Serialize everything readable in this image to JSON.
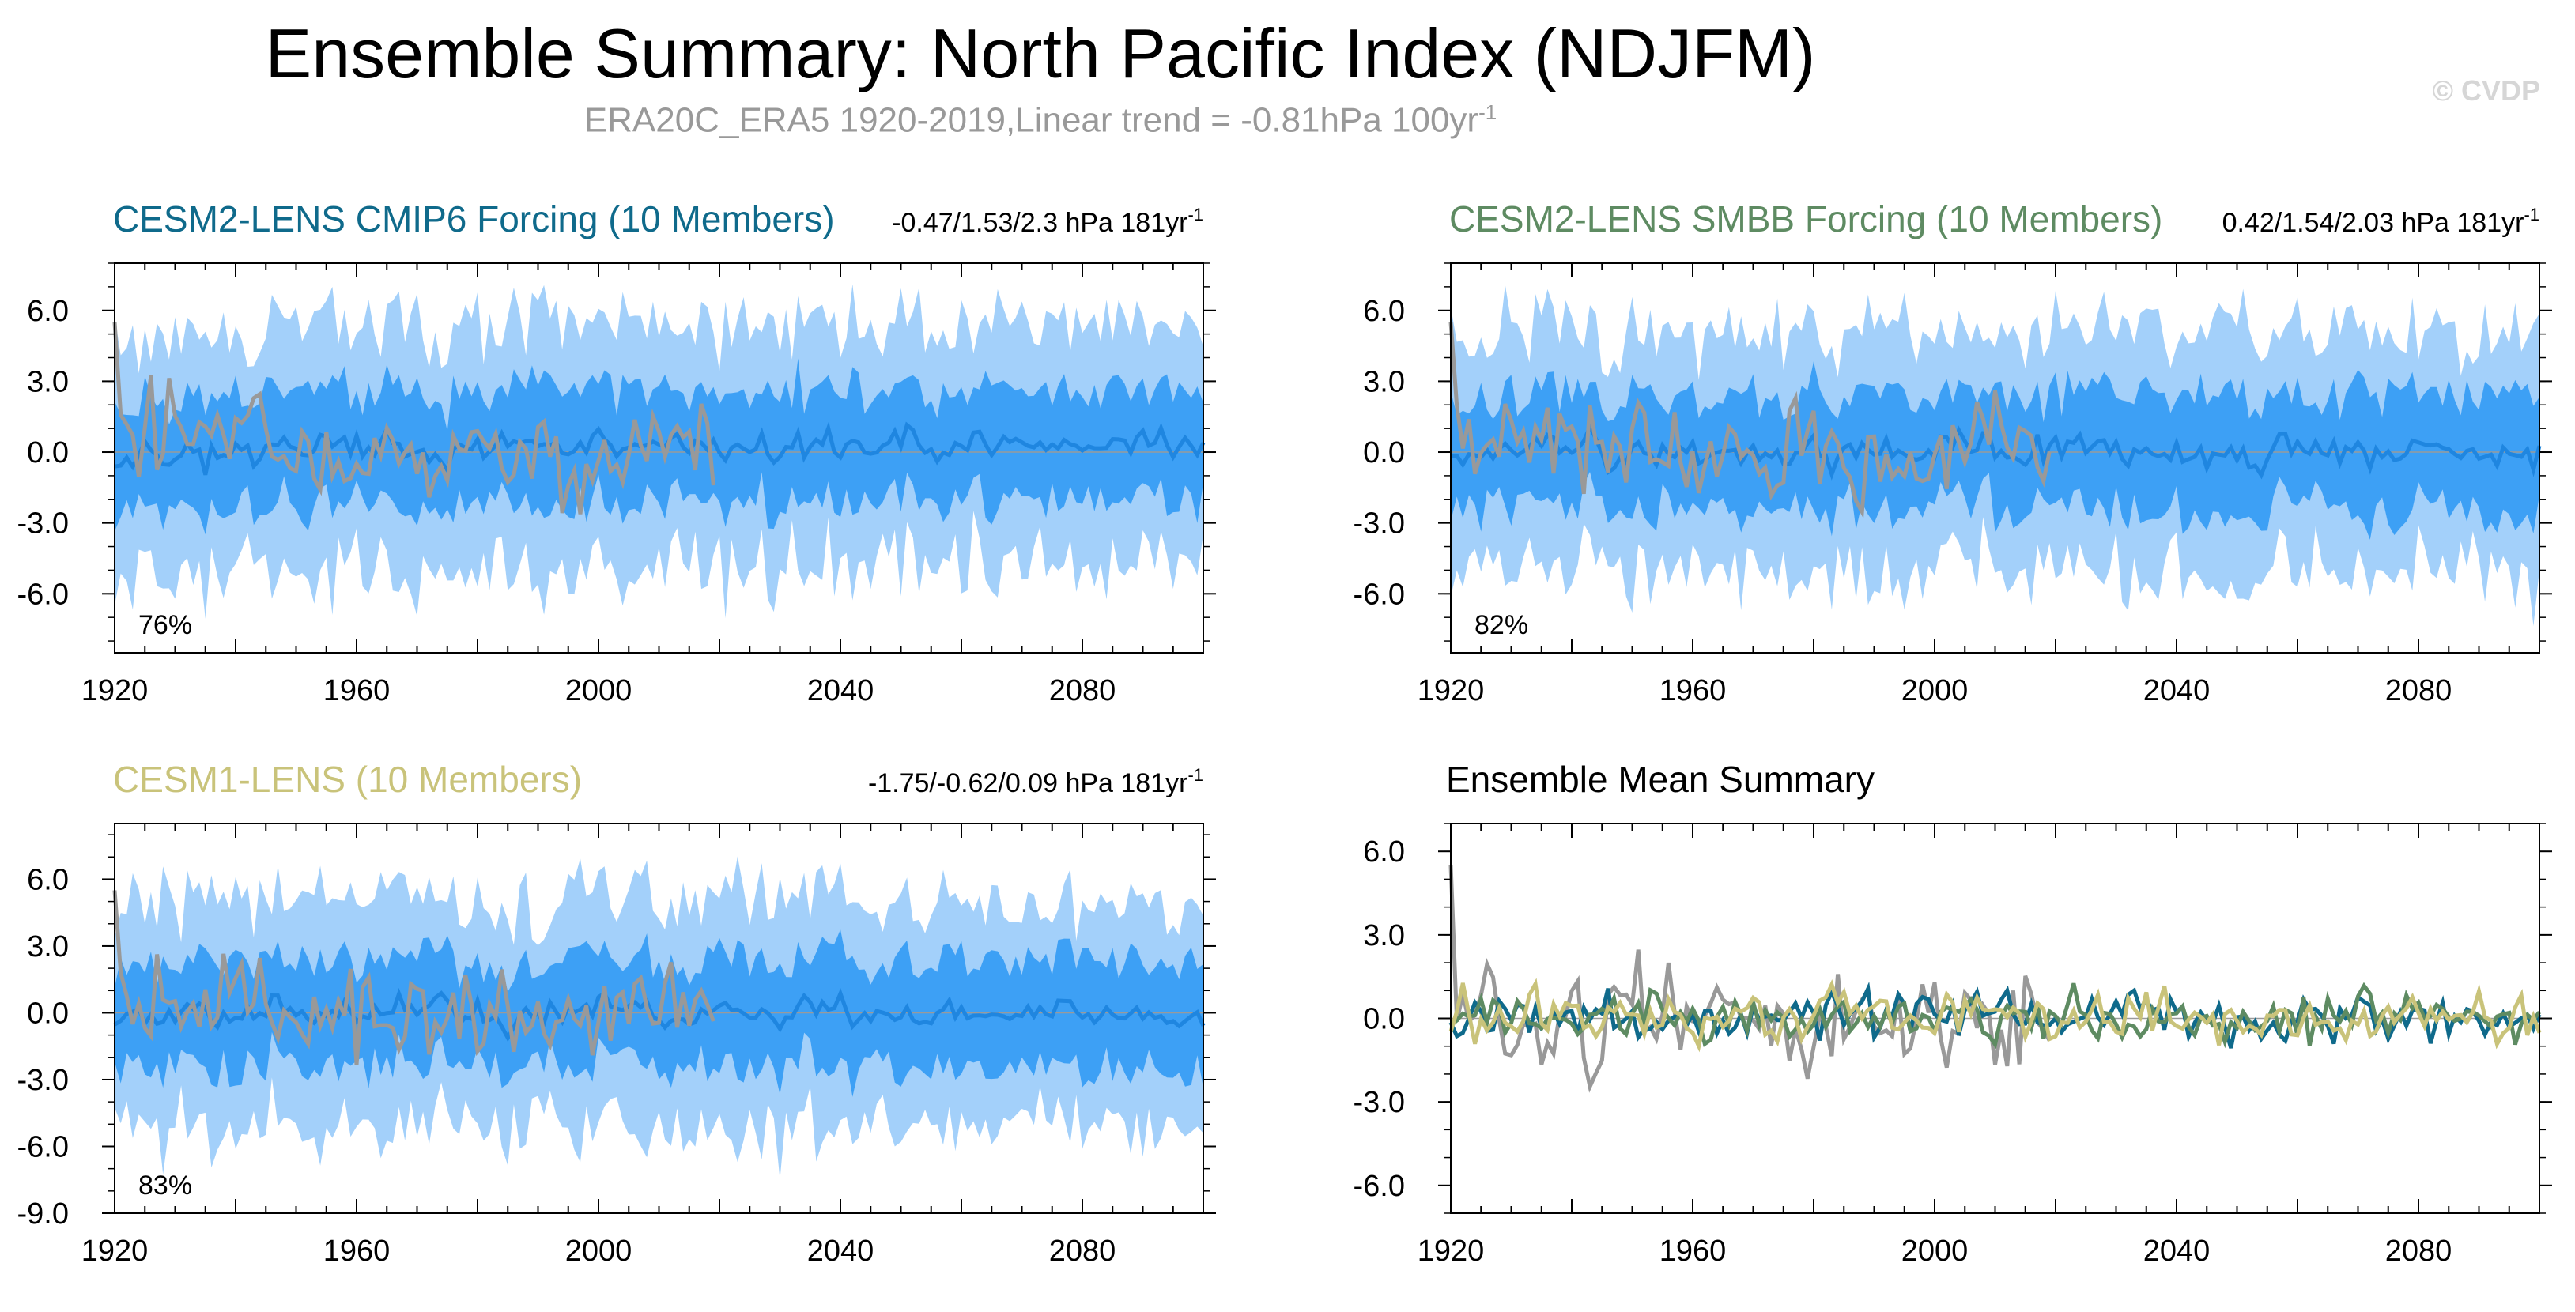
{
  "title": "Ensemble Summary: North Pacific Index (NDJFM)",
  "subtitle": {
    "text": "ERA20C_ERA5 1920-2019,Linear trend = -0.81hPa 100yr",
    "superscript": "-1"
  },
  "watermark": "© CVDP",
  "colors": {
    "band_outer": "#a3d0fa",
    "band_inner": "#3da0f5",
    "ensemble_mean": "#1f86e0",
    "observations": "#999999",
    "cesm2_cmip6": "#0f6a8b",
    "cesm2_smbb": "#5e8b62",
    "cesm1": "#c9c37a",
    "zero_line": "#9a9a9a"
  },
  "chart_data": [
    {
      "type": "area",
      "panel": "top-left",
      "title": "CESM2-LENS CMIP6 Forcing (10 Members)",
      "title_color": "#0f6a8b",
      "trend_text": "-0.47/1.53/2.3 hPa 181yr",
      "trend_superscript": "-1",
      "percent_label": "76%",
      "xlim": [
        1920,
        2100
      ],
      "ylim": [
        -8.5,
        8.0
      ],
      "xticks": [
        "1920",
        "1960",
        "2000",
        "2040",
        "2080"
      ],
      "yticks": [
        "6.0",
        "3.0",
        "0.0",
        "-3.0",
        "-6.0"
      ],
      "series": [
        {
          "name": "Ensemble range (min-max)",
          "style": "band_outer"
        },
        {
          "name": "Ensemble 10-90% range",
          "style": "band_inner"
        },
        {
          "name": "Ensemble mean",
          "style": "line"
        },
        {
          "name": "ERA20C_ERA5",
          "style": "line",
          "x_range": [
            1920,
            2019
          ]
        }
      ],
      "seed": 11,
      "mean_amp": 0.75
    },
    {
      "type": "area",
      "panel": "top-right",
      "title": "CESM2-LENS SMBB Forcing (10 Members)",
      "title_color": "#5e8b62",
      "trend_text": "0.42/1.54/2.03 hPa 181yr",
      "trend_superscript": "-1",
      "percent_label": "82%",
      "xlim": [
        1920,
        2100
      ],
      "ylim": [
        -8.5,
        8.0
      ],
      "xticks": [
        "1920",
        "1960",
        "2000",
        "2040",
        "2080"
      ],
      "yticks": [
        "6.0",
        "3.0",
        "0.0",
        "-3.0",
        "-6.0"
      ],
      "series": [
        {
          "name": "Ensemble range (min-max)",
          "style": "band_outer"
        },
        {
          "name": "Ensemble 10-90% range",
          "style": "band_inner"
        },
        {
          "name": "Ensemble mean",
          "style": "line"
        },
        {
          "name": "ERA20C_ERA5",
          "style": "line",
          "x_range": [
            1920,
            2019
          ]
        }
      ],
      "seed": 23,
      "mean_amp": 0.75
    },
    {
      "type": "area",
      "panel": "bottom-left",
      "title": "CESM1-LENS (10 Members)",
      "title_color": "#c9c37a",
      "trend_text": "-1.75/-0.62/0.09 hPa 181yr",
      "trend_superscript": "-1",
      "percent_label": "83%",
      "xlim": [
        1920,
        2100
      ],
      "ylim": [
        -9.0,
        8.5
      ],
      "xticks": [
        "1920",
        "1960",
        "2000",
        "2040",
        "2080"
      ],
      "yticks": [
        "6.0",
        "3.0",
        "0.0",
        "-3.0",
        "-6.0",
        "-9.0"
      ],
      "series": [
        {
          "name": "Ensemble range (min-max)",
          "style": "band_outer"
        },
        {
          "name": "Ensemble 10-90% range",
          "style": "band_inner"
        },
        {
          "name": "Ensemble mean",
          "style": "line"
        },
        {
          "name": "ERA20C_ERA5",
          "style": "line",
          "x_range": [
            1920,
            2019
          ]
        }
      ],
      "seed": 37,
      "mean_amp": 0.75
    },
    {
      "type": "line",
      "panel": "bottom-right",
      "title": "Ensemble Mean Summary",
      "title_color": "#000000",
      "xlim": [
        1920,
        2100
      ],
      "ylim": [
        -7.0,
        7.0
      ],
      "xticks": [
        "1920",
        "1960",
        "2000",
        "2040",
        "2080"
      ],
      "yticks": [
        "6.0",
        "3.0",
        "0.0",
        "-3.0",
        "-6.0"
      ],
      "series": [
        {
          "name": "ERA20C_ERA5",
          "color": "#999999",
          "x_range": [
            1920,
            2019
          ]
        },
        {
          "name": "CESM2-LENS CMIP6 Forcing",
          "color": "#0f6a8b",
          "x_range": [
            1920,
            2100
          ]
        },
        {
          "name": "CESM2-LENS SMBB Forcing",
          "color": "#5e8b62",
          "x_range": [
            1920,
            2100
          ]
        },
        {
          "name": "CESM1-LENS",
          "color": "#c9c37a",
          "x_range": [
            1920,
            2100
          ]
        }
      ],
      "seed": 51
    }
  ]
}
